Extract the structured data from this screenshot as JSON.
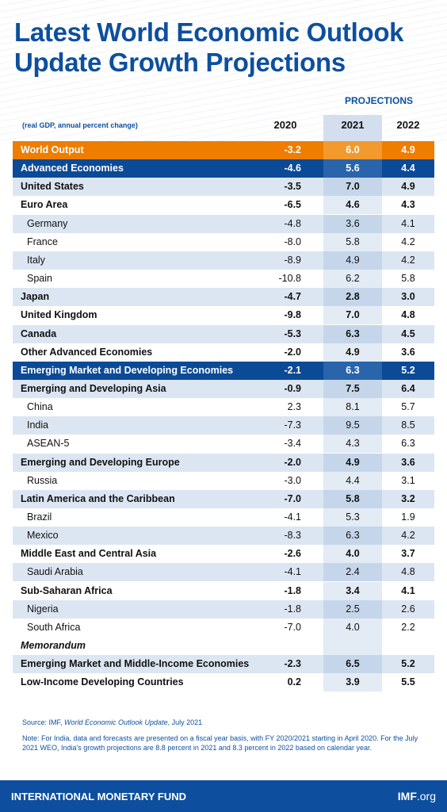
{
  "header": {
    "title": [
      "Latest World Economic Outlook",
      "Update Growth Projections"
    ]
  },
  "table": {
    "projections_label": "PROJECTIONS",
    "unit_note": "(real GDP, annual percent change)",
    "columns": [
      "2020",
      "2021",
      "2022"
    ],
    "rows": [
      {
        "label": "World Output",
        "values": [
          "-3.2",
          "6.0",
          "4.9"
        ],
        "style": "orange"
      },
      {
        "label": "Advanced Economies",
        "values": [
          "-4.6",
          "5.6",
          "4.4"
        ],
        "style": "blue"
      },
      {
        "label": "United States",
        "values": [
          "-3.5",
          "7.0",
          "4.9"
        ],
        "style": "bold-shaded"
      },
      {
        "label": "Euro Area",
        "values": [
          "-6.5",
          "4.6",
          "4.3"
        ],
        "style": "bold"
      },
      {
        "label": "Germany",
        "values": [
          "-4.8",
          "3.6",
          "4.1"
        ],
        "style": "indent-shaded"
      },
      {
        "label": "France",
        "values": [
          "-8.0",
          "5.8",
          "4.2"
        ],
        "style": "indent"
      },
      {
        "label": "Italy",
        "values": [
          "-8.9",
          "4.9",
          "4.2"
        ],
        "style": "indent-shaded"
      },
      {
        "label": "Spain",
        "values": [
          "-10.8",
          "6.2",
          "5.8"
        ],
        "style": "indent"
      },
      {
        "label": "Japan",
        "values": [
          "-4.7",
          "2.8",
          "3.0"
        ],
        "style": "bold-shaded"
      },
      {
        "label": "United Kingdom",
        "values": [
          "-9.8",
          "7.0",
          "4.8"
        ],
        "style": "bold"
      },
      {
        "label": "Canada",
        "values": [
          "-5.3",
          "6.3",
          "4.5"
        ],
        "style": "bold-shaded"
      },
      {
        "label": "Other Advanced Economies",
        "values": [
          "-2.0",
          "4.9",
          "3.6"
        ],
        "style": "bold"
      },
      {
        "label": "Emerging Market and Developing Economies",
        "values": [
          "-2.1",
          "6.3",
          "5.2"
        ],
        "style": "blue"
      },
      {
        "label": "Emerging and Developing Asia",
        "values": [
          "-0.9",
          "7.5",
          "6.4"
        ],
        "style": "bold-shaded"
      },
      {
        "label": "China",
        "values": [
          "2.3",
          "8.1",
          "5.7"
        ],
        "style": "indent"
      },
      {
        "label": "India",
        "values": [
          "-7.3",
          "9.5",
          "8.5"
        ],
        "style": "indent-shaded"
      },
      {
        "label": "ASEAN-5",
        "values": [
          "-3.4",
          "4.3",
          "6.3"
        ],
        "style": "indent"
      },
      {
        "label": "Emerging and Developing Europe",
        "values": [
          "-2.0",
          "4.9",
          "3.6"
        ],
        "style": "bold-shaded"
      },
      {
        "label": "Russia",
        "values": [
          "-3.0",
          "4.4",
          "3.1"
        ],
        "style": "indent"
      },
      {
        "label": "Latin America and the Caribbean",
        "values": [
          "-7.0",
          "5.8",
          "3.2"
        ],
        "style": "bold-shaded"
      },
      {
        "label": "Brazil",
        "values": [
          "-4.1",
          "5.3",
          "1.9"
        ],
        "style": "indent"
      },
      {
        "label": "Mexico",
        "values": [
          "-8.3",
          "6.3",
          "4.2"
        ],
        "style": "indent-shaded"
      },
      {
        "label": "Middle East and Central Asia",
        "values": [
          "-2.6",
          "4.0",
          "3.7"
        ],
        "style": "bold"
      },
      {
        "label": "Saudi Arabia",
        "values": [
          "-4.1",
          "2.4",
          "4.8"
        ],
        "style": "indent-shaded"
      },
      {
        "label": "Sub-Saharan Africa",
        "values": [
          "-1.8",
          "3.4",
          "4.1"
        ],
        "style": "bold"
      },
      {
        "label": "Nigeria",
        "values": [
          "-1.8",
          "2.5",
          "2.6"
        ],
        "style": "indent-shaded"
      },
      {
        "label": "South Africa",
        "values": [
          "-7.0",
          "4.0",
          "2.2"
        ],
        "style": "indent"
      },
      {
        "label": "Memorandum",
        "values": [],
        "style": "memo"
      },
      {
        "label": "Emerging Market and Middle-Income Economies",
        "values": [
          "-2.3",
          "6.5",
          "5.2"
        ],
        "style": "bold-shaded"
      },
      {
        "label": "Low-Income Developing Countries",
        "values": [
          "0.2",
          "3.9",
          "5.5"
        ],
        "style": "bold"
      }
    ]
  },
  "footer": {
    "source": {
      "prefix": "Source: IMF, ",
      "italic": "World Economic Outlook Update",
      "suffix": ", July 2021"
    },
    "note": "Note: For India, data and forecasts are presented on a fiscal year basis, with FY 2020/2021 starting in April 2020. For the July 2021 WEO, India's growth projections are 8.8 percent in 2021 and 8.3 percent in 2022 based on calendar year.",
    "organization": "INTERNATIONAL MONETARY FUND",
    "site": {
      "bold": "IMF",
      "rest": ".org"
    }
  }
}
